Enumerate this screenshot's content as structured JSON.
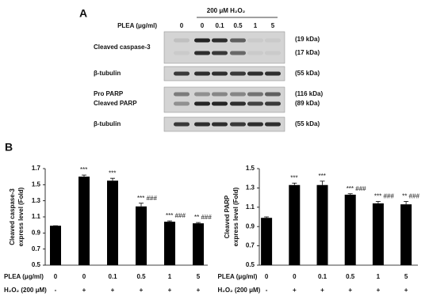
{
  "panel_a": {
    "label": "A",
    "treatment": "200 μM H₂O₂",
    "dose_label": "PLEA (μg/ml)",
    "doses": [
      "0",
      "0",
      "0.1",
      "0.5",
      "1",
      "5"
    ],
    "rows": [
      {
        "names": [
          "Cleaved caspase-3"
        ],
        "sizes": [
          "(19 kDa)",
          "(17 kDa)"
        ]
      },
      {
        "names": [
          "β-tubulin"
        ],
        "sizes": [
          "(55 kDa)"
        ]
      },
      {
        "names": [
          "Pro PARP",
          "Cleaved PARP"
        ],
        "sizes": [
          "(116 kDa)",
          "(89 kDa)"
        ]
      },
      {
        "names": [
          "β-tubulin"
        ],
        "sizes": [
          "(55 kDa)"
        ]
      }
    ]
  },
  "panel_b_label": "B",
  "chart_data": [
    {
      "type": "bar",
      "ylabel": [
        "Cleaved caspase-3",
        "express level (Fold)"
      ],
      "row_labels": [
        "PLEA (μg/ml)",
        "H₂O₂ (200 μM)"
      ],
      "categories": [
        "0",
        "0",
        "0.1",
        "0.5",
        "1",
        "5"
      ],
      "h2o2": [
        "-",
        "+",
        "+",
        "+",
        "+",
        "+"
      ],
      "values": [
        0.99,
        1.6,
        1.55,
        1.23,
        1.04,
        1.02
      ],
      "errors": [
        0,
        0.02,
        0.03,
        0.04,
        0.01,
        0.01
      ],
      "annotations": [
        null,
        "***",
        "***",
        "*** ###",
        "*** ###",
        "** ###"
      ],
      "color": "#000000",
      "ylim": [
        0.5,
        1.7
      ],
      "yticks": [
        0.5,
        0.7,
        0.9,
        1.1,
        1.3,
        1.5,
        1.7
      ]
    },
    {
      "type": "bar",
      "ylabel": [
        "Cleaved PARP",
        "express level (Fold)"
      ],
      "row_labels": [
        "PLEA (μg/ml)",
        "H₂O₂ (200 μM)"
      ],
      "categories": [
        "0",
        "0",
        "0.1",
        "0.5",
        "1",
        "5"
      ],
      "h2o2": [
        "-",
        "+",
        "+",
        "+",
        "+",
        "+"
      ],
      "values": [
        0.99,
        1.33,
        1.33,
        1.23,
        1.14,
        1.13
      ],
      "errors": [
        0.01,
        0.02,
        0.04,
        0.01,
        0.02,
        0.03
      ],
      "annotations": [
        null,
        "***",
        "***",
        "*** ###",
        "*** ###",
        "** ###"
      ],
      "color": "#000000",
      "ylim": [
        0.5,
        1.5
      ],
      "yticks": [
        0.5,
        0.7,
        0.9,
        1.1,
        1.3,
        1.5
      ]
    }
  ]
}
